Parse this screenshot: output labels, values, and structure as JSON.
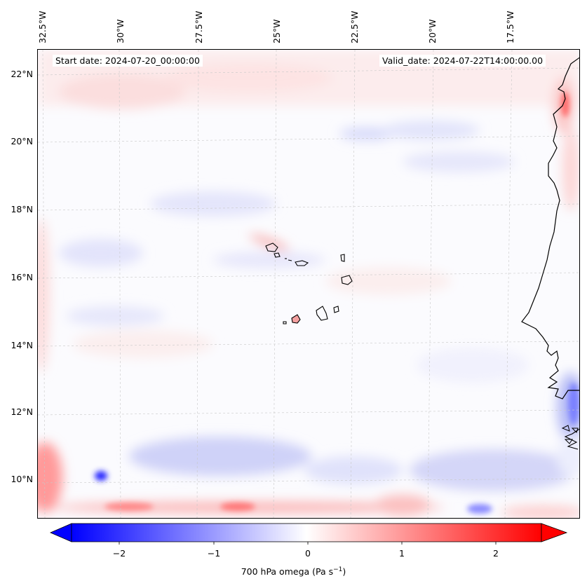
{
  "map": {
    "title_left": "Start date: 2024-07-20_00:00:00",
    "title_right": "Valid_date: 2024-07-22T14:00:00.00",
    "lon_labels": [
      "32.5°W",
      "30°W",
      "27.5°W",
      "25°W",
      "22.5°W",
      "20°W",
      "17.5°W"
    ],
    "lat_labels": [
      "22°N",
      "20°N",
      "18°N",
      "16°N",
      "14°N",
      "12°N",
      "10°N"
    ],
    "extent": {
      "lon_min": -33.0,
      "lon_max": -15.5,
      "lat_min": 8.8,
      "lat_max": 22.7
    }
  },
  "colorbar": {
    "ticks": [
      "−2",
      "−1",
      "0",
      "1",
      "2"
    ],
    "label_main": "700 hPa omega (Pa s",
    "label_sup": "−1",
    "label_end": ")",
    "vmin": -2.5,
    "vmax": 2.5,
    "low_color": "#0000ff",
    "mid_color": "#ffffff",
    "high_color": "#ff0000"
  }
}
